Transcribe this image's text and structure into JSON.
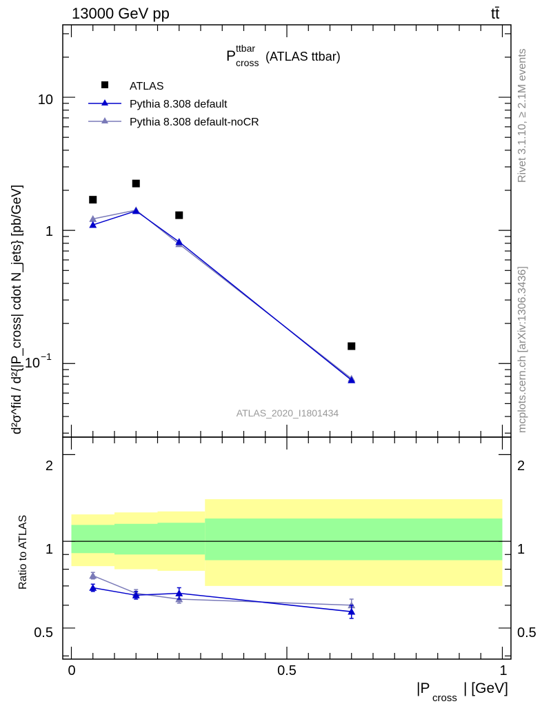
{
  "header": {
    "energy_label": "13000 GeV pp",
    "process_label": "tt̄",
    "rivet_label": "Rivet 3.1.10, ≥ 2.1M events",
    "source_label": "mcplots.cern.ch [arXiv:1306.3436]",
    "analysis_label": "ATLAS_2020_I1801434"
  },
  "plot_title": {
    "main": "P",
    "sup": "ttbar",
    "sub": "cross",
    "suffix": "(ATLAS ttbar)"
  },
  "axes": {
    "x_label_pre": "|P",
    "x_label_sub": "cross",
    "x_label_post": "| [GeV]",
    "y_label": "d²σ^fid / d²{|P_cross| cdot N_jets} [pb/GeV]",
    "ratio_label": "Ratio to ATLAS",
    "main_y_ticks": [
      "1",
      "10"
    ],
    "main_y_tick_exp": {
      "base": "10",
      "exp": "−1"
    },
    "ratio_y_ticks": [
      "0.5",
      "1",
      "2"
    ],
    "x_ticks": [
      "0",
      "0.5",
      "1"
    ]
  },
  "legend": [
    {
      "label": "ATLAS"
    },
    {
      "label": "Pythia 8.308 default"
    },
    {
      "label": "Pythia 8.308 default-noCR"
    }
  ],
  "colors": {
    "data": "#000000",
    "default": "#0000cc",
    "nocr": "#7a7ab8",
    "band_inner": "#99ff99",
    "band_outer": "#ffff99"
  },
  "chart_data": {
    "type": "line",
    "x_range": [
      -0.02,
      1.02
    ],
    "main_y_range": [
      0.028,
      35
    ],
    "main_y_scale": "log",
    "ratio_y_range": [
      0.39,
      2.3
    ],
    "series": [
      {
        "name": "ATLAS",
        "x": [
          0.05,
          0.15,
          0.25,
          0.65
        ],
        "y": [
          1.7,
          2.25,
          1.3,
          0.135
        ]
      },
      {
        "name": "Pythia 8.308 default",
        "x": [
          0.05,
          0.15,
          0.25,
          0.65
        ],
        "y": [
          1.1,
          1.4,
          0.82,
          0.075
        ],
        "ratio": [
          0.69,
          0.65,
          0.66,
          0.57
        ],
        "ratio_err": [
          0.02,
          0.02,
          0.03,
          0.03
        ]
      },
      {
        "name": "Pythia 8.308 default-noCR",
        "x": [
          0.05,
          0.15,
          0.25,
          0.65
        ],
        "y": [
          1.22,
          1.42,
          0.79,
          0.077
        ],
        "ratio": [
          0.76,
          0.66,
          0.63,
          0.6
        ],
        "ratio_err": [
          0.02,
          0.02,
          0.02,
          0.03
        ]
      }
    ],
    "uncertainty_bands": [
      {
        "x_range": [
          0.0,
          0.1
        ],
        "inner": [
          0.91,
          1.14
        ],
        "outer": [
          0.82,
          1.24
        ]
      },
      {
        "x_range": [
          0.1,
          0.2
        ],
        "inner": [
          0.9,
          1.15
        ],
        "outer": [
          0.8,
          1.26
        ]
      },
      {
        "x_range": [
          0.2,
          0.31
        ],
        "inner": [
          0.9,
          1.16
        ],
        "outer": [
          0.79,
          1.27
        ]
      },
      {
        "x_range": [
          0.31,
          1.0
        ],
        "inner": [
          0.86,
          1.2
        ],
        "outer": [
          0.7,
          1.4
        ]
      }
    ]
  }
}
